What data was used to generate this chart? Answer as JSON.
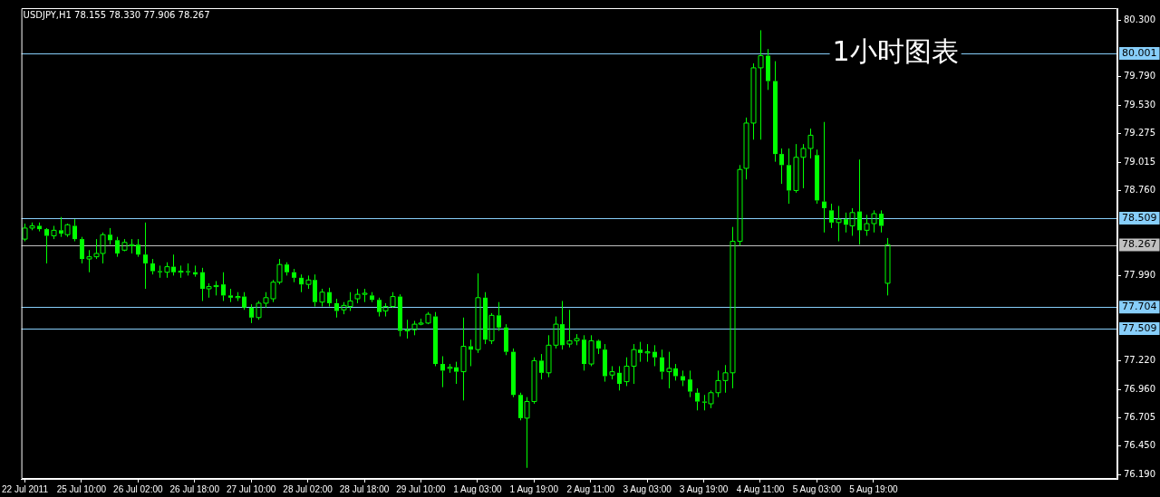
{
  "chart_data": {
    "type": "candlestick",
    "title": "USDJPY,H1 78.155 78.330 77.906 78.267",
    "annotations": [
      "1小时图表"
    ],
    "color": "#00ff00",
    "categories": [
      "22 Jul 2011",
      null,
      null,
      null,
      null,
      null,
      null,
      null,
      "25 Jul 10:00",
      null,
      null,
      null,
      null,
      null,
      null,
      null,
      "26 Jul 02:00",
      null,
      null,
      null,
      null,
      null,
      null,
      null,
      "26 Jul 18:00",
      null,
      null,
      null,
      null,
      null,
      null,
      null,
      "27 Jul 10:00",
      null,
      null,
      null,
      null,
      null,
      null,
      null,
      "28 Jul 02:00",
      null,
      null,
      null,
      null,
      null,
      null,
      null,
      "28 Jul 18:00",
      null,
      null,
      null,
      null,
      null,
      null,
      null,
      "29 Jul 10:00",
      null,
      null,
      null,
      null,
      null,
      null,
      null,
      "1 Aug 03:00",
      null,
      null,
      null,
      null,
      null,
      null,
      null,
      "1 Aug 19:00",
      null,
      null,
      null,
      null,
      null,
      null,
      null,
      "2 Aug 11:00",
      null,
      null,
      null,
      null,
      null,
      null,
      null,
      "3 Aug 03:00",
      null,
      null,
      null,
      null,
      null,
      null,
      null,
      "3 Aug 19:00",
      null,
      null,
      null,
      null,
      null,
      null,
      null,
      "4 Aug 11:00",
      null,
      null,
      null,
      null,
      null,
      null,
      null,
      "5 Aug 03:00",
      null,
      null,
      null,
      null,
      null,
      null,
      null,
      "5 Aug 19:00",
      null,
      null,
      null,
      null,
      null,
      null,
      null,
      null,
      null,
      null,
      null,
      null,
      null,
      null,
      null,
      null,
      null,
      null,
      null,
      null,
      null,
      null,
      null,
      null,
      null,
      null,
      null,
      null,
      null,
      null,
      null,
      null,
      null,
      null
    ],
    "ohlc": [
      [
        78.32,
        78.46,
        78.3,
        78.42
      ],
      [
        78.42,
        78.47,
        78.4,
        78.44
      ],
      [
        78.44,
        78.47,
        78.39,
        78.41
      ],
      [
        78.41,
        78.42,
        78.1,
        78.35
      ],
      [
        78.35,
        78.44,
        78.32,
        78.4
      ],
      [
        78.4,
        78.52,
        78.34,
        78.37
      ],
      [
        78.36,
        78.46,
        78.34,
        78.45
      ],
      [
        78.44,
        78.5,
        78.3,
        78.32
      ],
      [
        78.32,
        78.34,
        78.1,
        78.14
      ],
      [
        78.14,
        78.22,
        78.02,
        78.16
      ],
      [
        78.16,
        78.32,
        78.14,
        78.19
      ],
      [
        78.19,
        78.38,
        78.1,
        78.36
      ],
      [
        78.36,
        78.42,
        78.27,
        78.31
      ],
      [
        78.31,
        78.34,
        78.16,
        78.19
      ],
      [
        78.22,
        78.32,
        78.21,
        78.29
      ],
      [
        78.26,
        78.32,
        78.19,
        78.27
      ],
      [
        78.27,
        78.32,
        78.16,
        78.18
      ],
      [
        78.18,
        78.47,
        77.87,
        78.1
      ],
      [
        78.1,
        78.14,
        78.0,
        78.03
      ],
      [
        78.03,
        78.08,
        77.97,
        78.02
      ],
      [
        78.02,
        78.11,
        77.97,
        78.07
      ],
      [
        78.07,
        78.18,
        77.99,
        78.02
      ],
      [
        78.02,
        78.08,
        77.97,
        78.03
      ],
      [
        78.03,
        78.1,
        77.99,
        78.02
      ],
      [
        78.02,
        78.08,
        77.98,
        78.0
      ],
      [
        78.02,
        78.06,
        77.76,
        77.87
      ],
      [
        77.87,
        77.92,
        77.79,
        77.89
      ],
      [
        77.89,
        77.94,
        77.81,
        77.9
      ],
      [
        77.91,
        78.02,
        77.76,
        77.81
      ],
      [
        77.81,
        77.87,
        77.75,
        77.79
      ],
      [
        77.79,
        77.84,
        77.76,
        77.8
      ],
      [
        77.8,
        77.84,
        77.68,
        77.7
      ],
      [
        77.7,
        77.73,
        77.56,
        77.61
      ],
      [
        77.61,
        77.76,
        77.59,
        77.74
      ],
      [
        77.74,
        77.84,
        77.7,
        77.79
      ],
      [
        77.78,
        77.95,
        77.75,
        77.93
      ],
      [
        77.93,
        78.14,
        77.91,
        78.09
      ],
      [
        78.09,
        78.11,
        77.99,
        78.02
      ],
      [
        78.02,
        78.05,
        77.93,
        77.97
      ],
      [
        77.97,
        78.0,
        77.84,
        77.91
      ],
      [
        77.91,
        77.99,
        77.87,
        77.95
      ],
      [
        77.95,
        78.0,
        77.71,
        77.75
      ],
      [
        77.75,
        77.87,
        77.71,
        77.84
      ],
      [
        77.84,
        77.88,
        77.71,
        77.74
      ],
      [
        77.74,
        77.78,
        77.61,
        77.67
      ],
      [
        77.68,
        77.75,
        77.64,
        77.72
      ],
      [
        77.71,
        77.84,
        77.67,
        77.76
      ],
      [
        77.78,
        77.87,
        77.74,
        77.82
      ],
      [
        77.82,
        77.87,
        77.75,
        77.83
      ],
      [
        77.81,
        77.84,
        77.75,
        77.77
      ],
      [
        77.77,
        77.79,
        77.62,
        77.66
      ],
      [
        77.67,
        77.74,
        77.62,
        77.71
      ],
      [
        77.71,
        77.84,
        77.7,
        77.8
      ],
      [
        77.8,
        77.82,
        77.44,
        77.49
      ],
      [
        77.49,
        77.59,
        77.42,
        77.5
      ],
      [
        77.5,
        77.58,
        77.45,
        77.55
      ],
      [
        77.55,
        77.6,
        77.54,
        77.56
      ],
      [
        77.56,
        77.66,
        77.55,
        77.64
      ],
      [
        77.62,
        77.66,
        77.17,
        77.19
      ],
      [
        77.19,
        77.26,
        76.98,
        77.13
      ],
      [
        77.15,
        77.19,
        77.11,
        77.16
      ],
      [
        77.16,
        77.21,
        77.01,
        77.12
      ],
      [
        77.12,
        77.61,
        76.86,
        77.35
      ],
      [
        77.35,
        77.41,
        77.17,
        77.32
      ],
      [
        77.32,
        78.01,
        77.29,
        77.79
      ],
      [
        77.79,
        77.84,
        77.37,
        77.41
      ],
      [
        77.4,
        77.65,
        77.37,
        77.63
      ],
      [
        77.63,
        77.75,
        77.49,
        77.52
      ],
      [
        77.52,
        77.55,
        77.27,
        77.3
      ],
      [
        77.3,
        77.33,
        76.89,
        76.91
      ],
      [
        76.91,
        76.93,
        76.68,
        76.7
      ],
      [
        76.7,
        76.89,
        76.25,
        76.85
      ],
      [
        76.85,
        77.25,
        76.83,
        77.22
      ],
      [
        77.22,
        77.28,
        77.05,
        77.11
      ],
      [
        77.11,
        77.45,
        77.07,
        77.36
      ],
      [
        77.36,
        77.62,
        77.33,
        77.55
      ],
      [
        77.55,
        77.76,
        77.32,
        77.36
      ],
      [
        77.37,
        77.68,
        77.34,
        77.4
      ],
      [
        77.4,
        77.46,
        77.36,
        77.42
      ],
      [
        77.41,
        77.45,
        77.13,
        77.19
      ],
      [
        77.19,
        77.45,
        77.17,
        77.4
      ],
      [
        77.4,
        77.41,
        77.28,
        77.33
      ],
      [
        77.32,
        77.37,
        77.03,
        77.08
      ],
      [
        77.09,
        77.17,
        77.05,
        77.12
      ],
      [
        77.11,
        77.17,
        76.95,
        77.01
      ],
      [
        77.03,
        77.25,
        76.99,
        77.17
      ],
      [
        77.17,
        77.37,
        77.01,
        77.32
      ],
      [
        77.32,
        77.39,
        77.21,
        77.29
      ],
      [
        77.29,
        77.37,
        77.21,
        77.3
      ],
      [
        77.3,
        77.36,
        77.17,
        77.25
      ],
      [
        77.25,
        77.32,
        77.05,
        77.12
      ],
      [
        77.12,
        77.3,
        76.97,
        77.15
      ],
      [
        77.15,
        77.19,
        77.04,
        77.08
      ],
      [
        77.08,
        77.13,
        76.99,
        77.04
      ],
      [
        77.05,
        77.13,
        76.89,
        76.94
      ],
      [
        76.93,
        76.97,
        76.77,
        76.85
      ],
      [
        76.85,
        76.91,
        76.77,
        76.84
      ],
      [
        76.83,
        76.95,
        76.79,
        76.93
      ],
      [
        76.93,
        77.13,
        76.89,
        77.04
      ],
      [
        77.04,
        77.18,
        76.93,
        77.11
      ],
      [
        77.11,
        78.43,
        76.97,
        78.3
      ],
      [
        78.3,
        78.99,
        78.26,
        78.95
      ],
      [
        78.96,
        79.42,
        78.86,
        79.37
      ],
      [
        79.37,
        79.91,
        79.22,
        79.87
      ],
      [
        79.87,
        80.21,
        79.22,
        79.98
      ],
      [
        79.98,
        80.04,
        79.67,
        79.75
      ],
      [
        79.75,
        79.93,
        79.02,
        79.09
      ],
      [
        79.09,
        79.14,
        78.82,
        78.99
      ],
      [
        78.99,
        79.14,
        78.64,
        78.76
      ],
      [
        78.76,
        79.18,
        78.74,
        79.06
      ],
      [
        79.06,
        79.18,
        78.78,
        79.14
      ],
      [
        79.14,
        79.32,
        79.05,
        79.26
      ],
      [
        79.08,
        79.13,
        78.64,
        78.67
      ],
      [
        78.66,
        79.38,
        78.38,
        78.6
      ],
      [
        78.58,
        78.64,
        78.42,
        78.47
      ],
      [
        78.47,
        78.62,
        78.3,
        78.5
      ],
      [
        78.5,
        78.56,
        78.38,
        78.45
      ],
      [
        78.44,
        78.6,
        78.35,
        78.56
      ],
      [
        78.57,
        79.04,
        78.27,
        78.4
      ],
      [
        78.4,
        78.54,
        78.35,
        78.46
      ],
      [
        78.46,
        78.58,
        78.38,
        78.55
      ],
      [
        78.55,
        78.58,
        78.38,
        78.44
      ],
      [
        77.92,
        78.33,
        77.81,
        78.27
      ],
      null,
      null,
      null,
      null,
      null,
      null,
      null,
      null,
      null,
      null,
      null,
      null,
      null,
      null,
      null,
      null,
      null,
      null,
      null,
      null,
      null,
      null,
      null,
      null,
      null,
      null,
      null,
      null,
      null,
      null,
      null,
      null
    ],
    "ylim": [
      76.15,
      80.41
    ],
    "yticks": [
      {
        "value": 80.3,
        "label": "80.300"
      },
      {
        "value": 79.79,
        "label": "79.790"
      },
      {
        "value": 79.53,
        "label": "79.530"
      },
      {
        "value": 79.275,
        "label": "79.275"
      },
      {
        "value": 79.015,
        "label": "79.015"
      },
      {
        "value": 78.76,
        "label": "78.760"
      },
      {
        "value": 77.99,
        "label": "77.990"
      },
      {
        "value": 77.22,
        "label": "77.220"
      },
      {
        "value": 76.96,
        "label": "76.960"
      },
      {
        "value": 76.705,
        "label": "76.705"
      },
      {
        "value": 76.45,
        "label": "76.450"
      },
      {
        "value": 76.19,
        "label": "76.190"
      }
    ],
    "ref_lines": [
      {
        "axis": "y",
        "value": 80.001,
        "label": "80.001",
        "color": "#87cefa"
      },
      {
        "axis": "y",
        "value": 78.509,
        "label": "78.509",
        "color": "#87cefa"
      },
      {
        "axis": "y",
        "value": 78.267,
        "label": "78.267",
        "color": "#c0c0c0"
      },
      {
        "axis": "y",
        "value": 77.704,
        "label": "77.704",
        "color": "#87cefa"
      },
      {
        "axis": "y",
        "value": 77.509,
        "label": "77.509",
        "color": "#87cefa"
      }
    ]
  }
}
